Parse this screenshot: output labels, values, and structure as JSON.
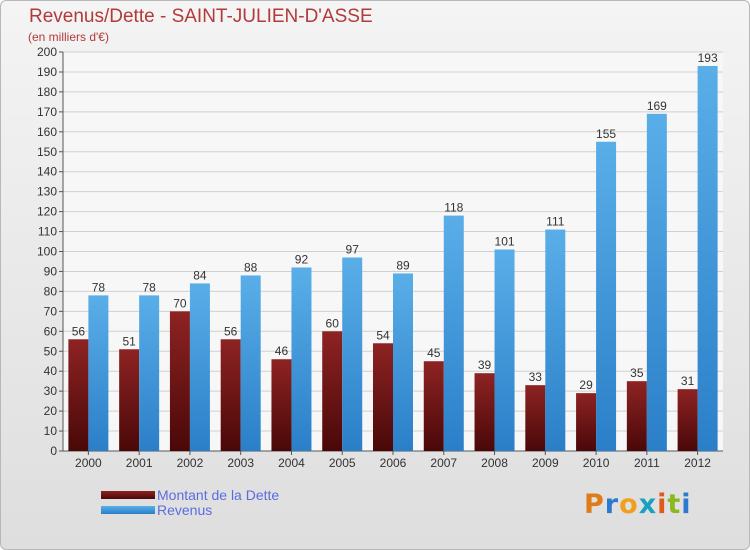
{
  "title": "Revenus/Dette - SAINT-JULIEN-D'ASSE",
  "subtitle": "(en milliers d'€)",
  "legend": {
    "items": [
      {
        "label": "Montant de la Dette",
        "color": "#7a1515"
      },
      {
        "label": "Revenus",
        "color": "#4a9de0"
      }
    ]
  },
  "logo": {
    "letters": [
      {
        "ch": "P",
        "color": "#e07b1a"
      },
      {
        "ch": "r",
        "color": "#2a7ad0"
      },
      {
        "ch": "o",
        "color": "#f0a020"
      },
      {
        "ch": "x",
        "color": "#1aa0c0"
      },
      {
        "ch": "i",
        "color": "#e05a1a"
      },
      {
        "ch": "t",
        "color": "#8ab820"
      },
      {
        "ch": "i",
        "color": "#2a7ad0"
      }
    ]
  },
  "chart_data": {
    "type": "bar",
    "title": "Revenus/Dette - SAINT-JULIEN-D'ASSE",
    "subtitle": "(en milliers d'€)",
    "categories": [
      "2000",
      "2001",
      "2002",
      "2003",
      "2004",
      "2005",
      "2006",
      "2007",
      "2008",
      "2009",
      "2010",
      "2011",
      "2012"
    ],
    "series": [
      {
        "name": "Montant de la Dette",
        "color": "#7a1515",
        "values": [
          56,
          51,
          70,
          56,
          46,
          60,
          54,
          45,
          39,
          33,
          29,
          35,
          31
        ]
      },
      {
        "name": "Revenus",
        "color": "#4a9de0",
        "values": [
          78,
          78,
          84,
          88,
          92,
          97,
          89,
          118,
          101,
          111,
          155,
          169,
          193
        ]
      }
    ],
    "ylim": [
      0,
      200
    ],
    "ytick_step": 10,
    "grid": true,
    "legend_position": "bottom-left"
  }
}
